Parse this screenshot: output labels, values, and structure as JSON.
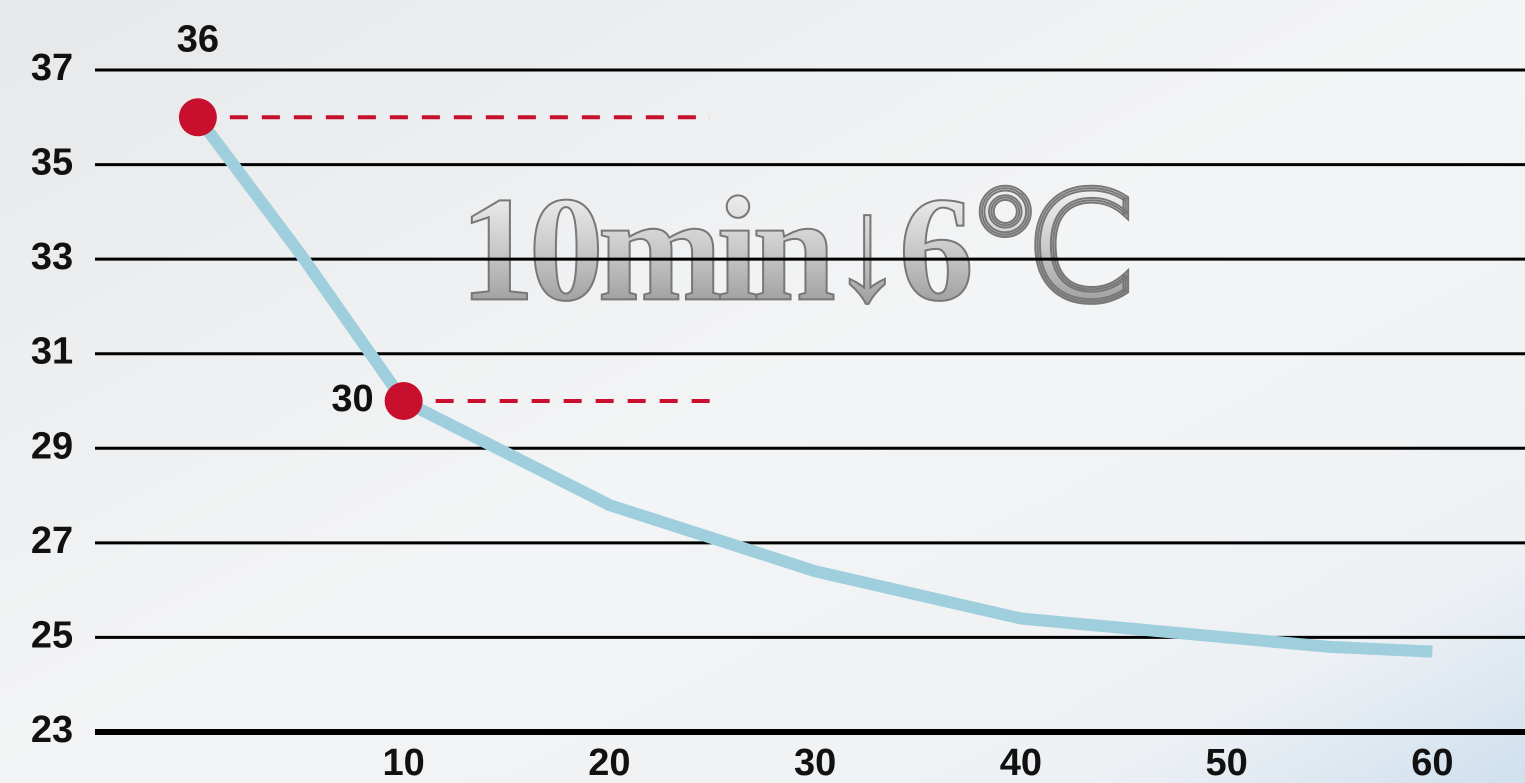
{
  "chart_data": {
    "type": "line",
    "annotation": "10min↓6℃",
    "x": [
      0,
      5,
      10,
      15,
      20,
      25,
      30,
      35,
      40,
      45,
      50,
      55,
      60
    ],
    "series": [
      {
        "color": "#9fcfdd",
        "values": [
          36,
          33.1,
          30,
          28.9,
          27.8,
          27.1,
          26.4,
          25.9,
          25.4,
          25.2,
          25,
          24.8,
          24.7
        ]
      }
    ],
    "highlight": {
      "x": [
        0,
        10
      ],
      "values": [
        36,
        30
      ],
      "color": "#c8102e"
    },
    "xlim": [
      -5,
      64.5
    ],
    "ylim": [
      23,
      37
    ],
    "xticks": [
      10,
      20,
      30,
      40,
      50,
      60
    ],
    "yticks": [
      23,
      25,
      27,
      29,
      31,
      33,
      35,
      37
    ],
    "grid": true
  }
}
